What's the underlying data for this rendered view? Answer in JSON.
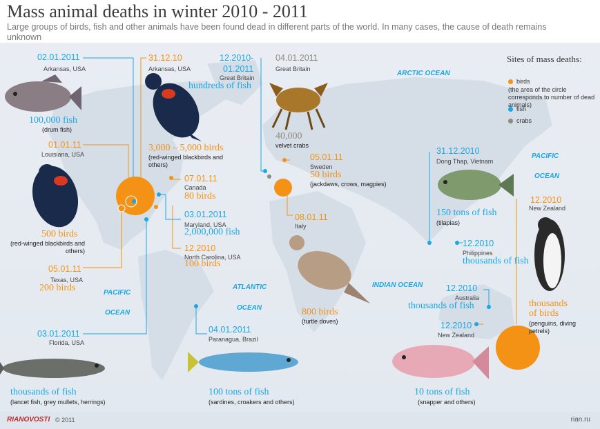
{
  "title": "Mass animal deaths in winter 2010 - 2011",
  "subtitle": "Large groups of birds, fish and other animals have been found dead in different parts of the world. In many cases, the cause of death remains unknown",
  "oceans": {
    "arctic": "ARCTIC OCEAN",
    "pacific_left_1": "PACIFIC",
    "pacific_left_2": "OCEAN",
    "atlantic_1": "ATLANTIC",
    "atlantic_2": "OCEAN",
    "indian": "INDIAN OCEAN",
    "pacific_right_1": "PACIFIC",
    "pacific_right_2": "OCEAN"
  },
  "legend": {
    "title": "Sites of mass deaths:",
    "birds": "birds",
    "birds_note": "(the area of the circle corresponds to number of dead animals)",
    "fish": "fish",
    "crabs": "crabs",
    "colors": {
      "birds": "#f39214",
      "fish": "#1aa7e3",
      "crabs": "#8c8c7c"
    }
  },
  "events": {
    "arkansas_fish": {
      "date": "02.01.2011",
      "place": "Arkansas, USA",
      "count": "100,000 fish",
      "species": "(drum fish)"
    },
    "arkansas_birds": {
      "date": "31.12.10",
      "place": "Arkansas, USA",
      "count": "3,000 – 5,000 birds",
      "species": "(red-winged blackbirds and others)"
    },
    "britain_fish": {
      "date": "12.2010-",
      "date2": "01.2011",
      "place": "Great Britain",
      "count": "hundreds of fish"
    },
    "britain_crabs": {
      "date": "04.01.2011",
      "place": "Great Britain",
      "count": "40,000",
      "species": "velvet crabs"
    },
    "louisiana_birds": {
      "date": "01.01.11",
      "place": "Louisiana, USA",
      "count": "500 birds",
      "species": "(red-winged blackbirds and others)"
    },
    "canada_birds": {
      "date": "07.01.11",
      "place": "Canada",
      "count": "80 birds"
    },
    "sweden_birds": {
      "date": "05.01.11",
      "place": "Sweden",
      "count": "50 birds",
      "species": "(jackdaws, crows, magpies)"
    },
    "maryland_fish": {
      "date": "03.01.2011",
      "place": "Maryland, USA",
      "count": "2,000,000 fish"
    },
    "italy_birds": {
      "date": "08.01.11",
      "place": "Italy",
      "count": "800 birds",
      "species": "(turtle doves)"
    },
    "ncarolina_birds": {
      "date": "12.2010",
      "place": "North Carolina, USA",
      "count": "100 birds"
    },
    "texas_birds": {
      "date": "05.01.11",
      "place": "Texas, USA",
      "count": "200 birds"
    },
    "vietnam_fish": {
      "date": "31.12.2010",
      "place": "Dong Thap, Vietnam",
      "count": "150 tons of fish",
      "species": "(tilapias)"
    },
    "philippines_fish": {
      "date": "12.2010",
      "place": "Philippines",
      "count": "thousands of fish"
    },
    "australia_fish": {
      "date": "12.2010",
      "place": "Australia",
      "count": "thousands of fish"
    },
    "nz_birds": {
      "date": "12.2010",
      "place": "New Zealand",
      "count": "thousands of birds",
      "species": "(penguins, diving petrels)"
    },
    "nz_fish": {
      "date": "12.2010",
      "place": "New Zealand",
      "count": "10 tons of fish",
      "species": "(snapper and others)"
    },
    "florida_fish": {
      "date": "03.01.2011",
      "place": "Florida, USA",
      "count": "thousands of fish",
      "species": "(lancet fish, grey mullets, herrings)"
    },
    "brazil_fish": {
      "date": "04.01.2011",
      "place": "Paranagua, Brazil",
      "count": "100 tons of fish",
      "species": "(sardines, croakers and others)"
    }
  },
  "footer": {
    "logo": "RIANOVOSTI",
    "copyright": "© 2011",
    "site": "rian.ru"
  }
}
